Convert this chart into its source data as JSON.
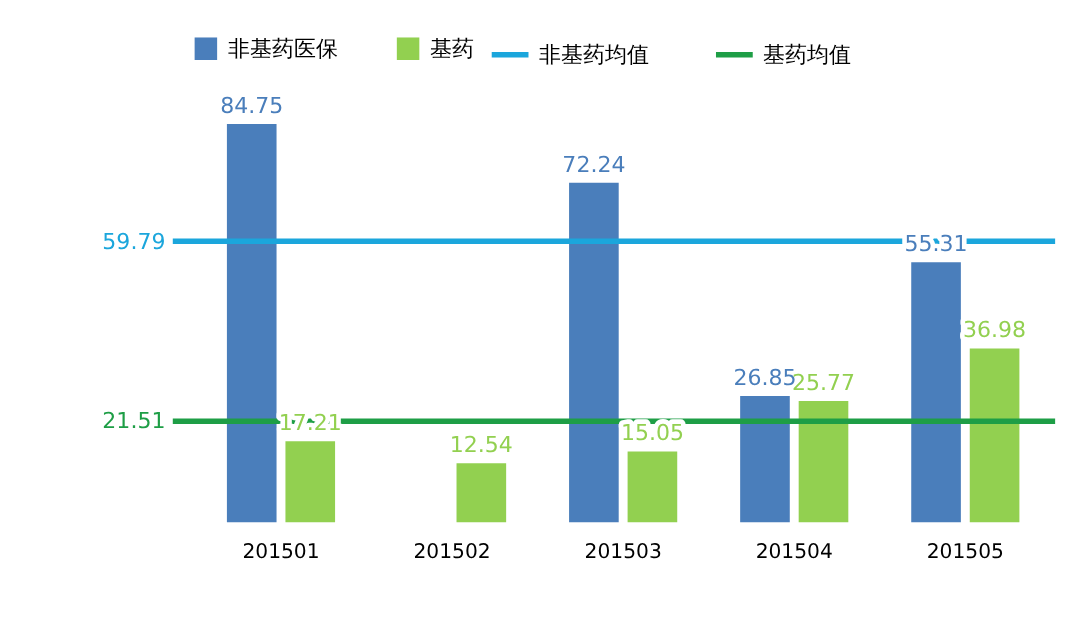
{
  "chart_data": {
    "type": "bar",
    "categories": [
      "201501",
      "201502",
      "201503",
      "201504",
      "201505"
    ],
    "series": [
      {
        "name": "非基药医保",
        "color": "#4a7ebb",
        "values": [
          84.75,
          null,
          72.24,
          26.85,
          55.31
        ]
      },
      {
        "name": "基药",
        "color": "#92d050",
        "values": [
          17.21,
          12.54,
          15.05,
          25.77,
          36.98
        ]
      }
    ],
    "ref_lines": [
      {
        "axis": "y",
        "value": 59.79,
        "label": "非基药均值",
        "color": "#1ba6dc"
      },
      {
        "axis": "y",
        "value": 21.51,
        "label": "基药均值",
        "color": "#1e9e46"
      }
    ],
    "annotations": [
      "59.79",
      "21.51"
    ],
    "data_labels": true,
    "legend": "top",
    "grid": false
  }
}
